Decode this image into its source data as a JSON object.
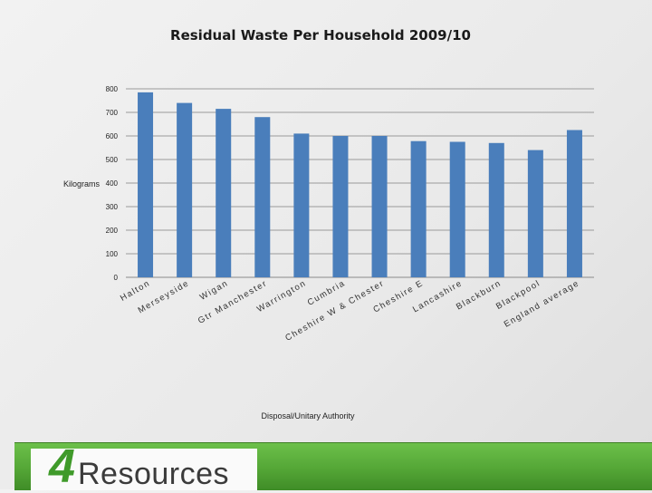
{
  "chart_data": {
    "type": "bar",
    "title": "Residual Waste Per Household 2009/10",
    "xlabel": "Disposal/Unitary Authority",
    "ylabel": "Kilograms",
    "ylim": [
      0,
      800
    ],
    "yticks": [
      0,
      100,
      200,
      300,
      400,
      500,
      600,
      700,
      800
    ],
    "grid": true,
    "bar_color": "#4a7ebb",
    "categories": [
      "Halton",
      "Merseyside",
      "Wigan",
      "Gtr Manchester",
      "Warrington",
      "Cumbria",
      "Cheshire W & Chester",
      "Cheshire E",
      "Lancashire",
      "Blackburn",
      "Blackpool",
      "England average"
    ],
    "values": [
      785,
      740,
      715,
      680,
      610,
      600,
      600,
      578,
      575,
      570,
      540,
      625
    ]
  },
  "footer": {
    "logo_text": "4Resources",
    "logo_digit": "4",
    "logo_word": "Resources",
    "brand_color": "#4caf32"
  }
}
